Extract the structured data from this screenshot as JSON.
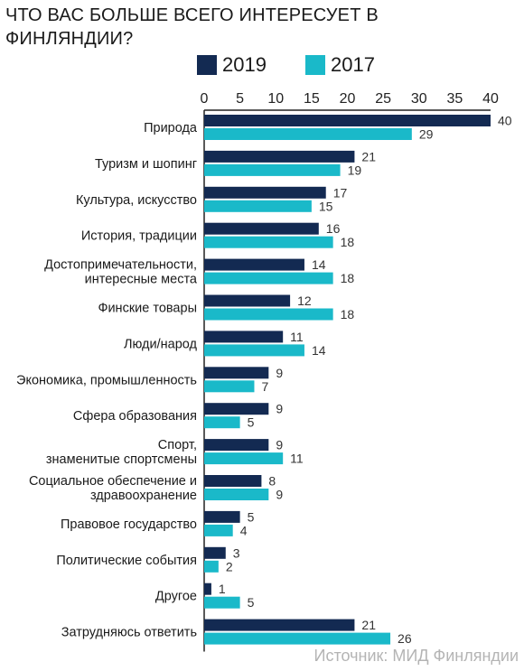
{
  "title": "ЧТО ВАС БОЛЬШЕ ВСЕГО ИНТЕРЕСУЕТ В ФИНЛЯНДИИ?",
  "source": "Источник: МИД Финляндии",
  "colors": {
    "series_2019": "#132a52",
    "series_2017": "#1ab9c9",
    "axis": "#222222",
    "label": "#333333"
  },
  "chart_data": {
    "type": "bar",
    "orientation": "horizontal",
    "title": "ЧТО ВАС БОЛЬШЕ ВСЕГО ИНТЕРЕСУЕТ В ФИНЛЯНДИИ?",
    "xlabel": "",
    "ylabel": "",
    "xlim": [
      0,
      40
    ],
    "ticks": [
      0,
      5,
      10,
      15,
      20,
      25,
      30,
      35,
      40
    ],
    "axis_position": "top",
    "grid": false,
    "legend_position": "top",
    "categories": [
      "Природа",
      "Туризм и шопинг",
      "Культура, искусство",
      "История, традиции",
      "Достопримечательности,\nинтересные места",
      "Финские товары",
      "Люди/народ",
      "Экономика, промышленность",
      "Сфера образования",
      "Спорт,\nзнаменитые спортсмены",
      "Социальное обеспечение и\nздравоохранение",
      "Правовое государство",
      "Политические события",
      "Другое",
      "Затрудняюсь ответить"
    ],
    "series": [
      {
        "name": "2019",
        "color": "#132a52",
        "values": [
          40,
          21,
          17,
          16,
          14,
          12,
          11,
          9,
          9,
          9,
          8,
          5,
          3,
          1,
          21
        ]
      },
      {
        "name": "2017",
        "color": "#1ab9c9",
        "values": [
          29,
          19,
          15,
          18,
          18,
          18,
          14,
          7,
          5,
          11,
          9,
          4,
          2,
          5,
          26
        ]
      }
    ]
  }
}
